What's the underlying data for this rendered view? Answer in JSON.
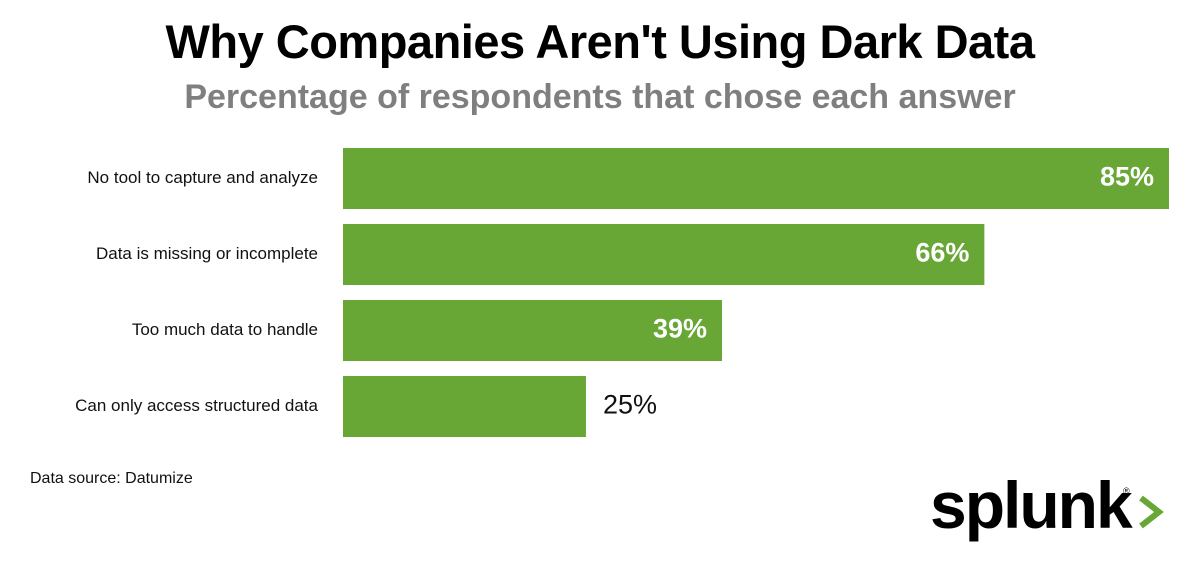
{
  "chart_data": {
    "type": "bar",
    "orientation": "horizontal",
    "title": "Why Companies Aren't Using Dark Data",
    "subtitle": "Percentage of respondents that chose each answer",
    "categories": [
      "No tool to capture and analyze",
      "Data is missing or incomplete",
      "Too much data to handle",
      "Can only access structured data"
    ],
    "values": [
      85,
      66,
      39,
      25
    ],
    "value_labels": [
      "85%",
      "66%",
      "39%",
      "25%"
    ],
    "xlim": [
      0,
      85
    ],
    "xlabel": "",
    "ylabel": "",
    "grid": false,
    "bar_color": "#68a635"
  },
  "footer": {
    "source": "Data source: Datumize",
    "logo_text": "splunk",
    "logo_reg": "®"
  },
  "colors": {
    "bar": "#68a635",
    "subtitle": "#7f7f7f",
    "logo_chevron": "#68a635"
  }
}
